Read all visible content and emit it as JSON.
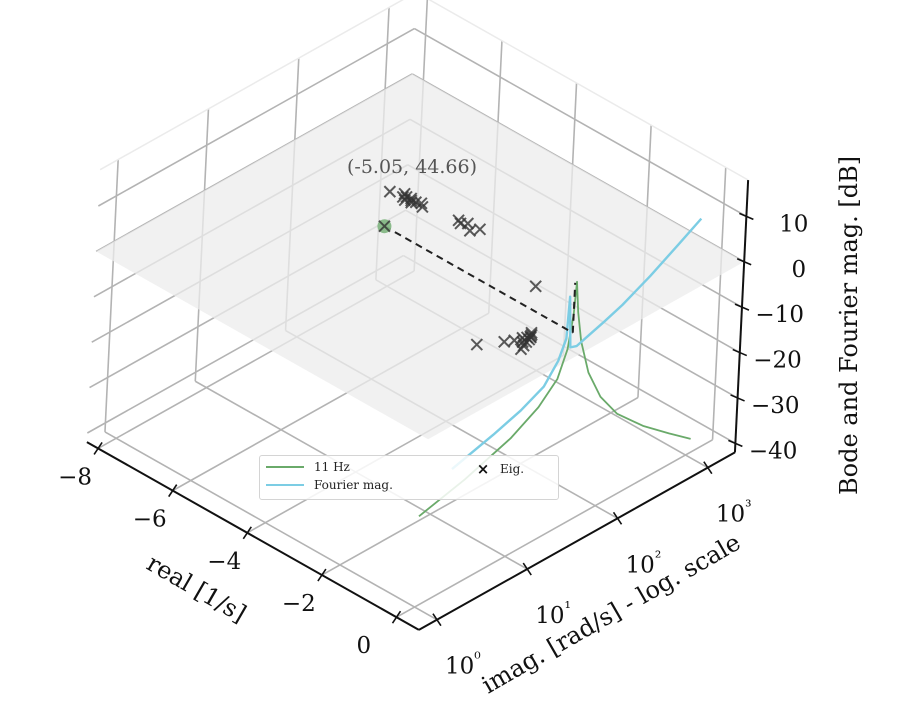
{
  "chart_data": {
    "type": "3d-line-scatter",
    "title": "",
    "xlabel": "real [1/s]",
    "ylabel": "imag. [rad/s] - log. scale",
    "zlabel": "Bode and Fourier mag. [dB]",
    "x_ticks": [
      "−8",
      "−6",
      "−4",
      "−2",
      "0"
    ],
    "x_tick_values": [
      -8,
      -6,
      -4,
      -2,
      0
    ],
    "y_ticks": [
      "10⁰",
      "10¹",
      "10²",
      "10³"
    ],
    "y_tick_values_log10": [
      0,
      1,
      2,
      3
    ],
    "z_ticks": [
      "10",
      "0",
      "−10",
      "−20",
      "−30",
      "−40"
    ],
    "z_tick_values": [
      10,
      0,
      -10,
      -20,
      -30,
      -40
    ],
    "xlim": [
      -8.3,
      0.6
    ],
    "ylim_log10": [
      -0.2,
      3.3
    ],
    "zlim": [
      -42,
      18
    ],
    "grid": true,
    "legend_position": "lower center (inside floor)",
    "annotation": {
      "text": "(-5.05, 44.66)",
      "point": {
        "real": -5.05,
        "imag": 44.66
      }
    },
    "series": [
      {
        "name": "11 Hz",
        "kind": "line",
        "color": "#6aaa6a",
        "description": "Bode magnitude along imaginary axis at real = 0",
        "points_log10imag_db": [
          [
            0.0,
            -22
          ],
          [
            0.5,
            -19.5
          ],
          [
            1.0,
            -16
          ],
          [
            1.3,
            -12.5
          ],
          [
            1.5,
            -8.5
          ],
          [
            1.6,
            -3
          ],
          [
            1.65,
            4
          ],
          [
            1.67,
            11
          ],
          [
            1.7,
            4
          ],
          [
            1.75,
            -3
          ],
          [
            1.85,
            -11
          ],
          [
            2.0,
            -18
          ],
          [
            2.2,
            -24
          ],
          [
            2.5,
            -30
          ],
          [
            2.8,
            -35
          ],
          [
            3.05,
            -39
          ]
        ]
      },
      {
        "name": "Fourier mag.",
        "kind": "line",
        "color": "#7ccde4",
        "description": "Fourier magnitude along imaginary axis at real = 0",
        "points_log10imag_db": [
          [
            0.35,
            -15.5
          ],
          [
            0.8,
            -13
          ],
          [
            1.1,
            -11
          ],
          [
            1.35,
            -8.5
          ],
          [
            1.5,
            -4.5
          ],
          [
            1.58,
            -0.5
          ],
          [
            1.6,
            8.5
          ],
          [
            1.63,
            -3
          ],
          [
            1.7,
            -3.5
          ],
          [
            1.85,
            -2.5
          ],
          [
            2.0,
            -1.5
          ],
          [
            2.2,
            0
          ],
          [
            2.5,
            3
          ],
          [
            2.8,
            6.5
          ],
          [
            3.05,
            9.5
          ]
        ]
      },
      {
        "name": "Eig.",
        "kind": "scatter",
        "marker": "x",
        "color": "#333333",
        "z_plane_db": 0,
        "points_real_log10imag": [
          [
            -5.8,
            2.02
          ],
          [
            -5.55,
            2.08
          ],
          [
            -5.5,
            2.04
          ],
          [
            -5.45,
            2.06
          ],
          [
            -5.4,
            2.02
          ],
          [
            -5.35,
            2.07
          ],
          [
            -5.3,
            2.05
          ],
          [
            -5.25,
            2.03
          ],
          [
            -5.2,
            2.06
          ],
          [
            -5.1,
            2.08
          ],
          [
            -5.0,
            2.05
          ],
          [
            -4.2,
            2.12
          ],
          [
            -4.1,
            2.1
          ],
          [
            -4.0,
            2.14
          ],
          [
            -3.8,
            2.08
          ],
          [
            -3.7,
            2.15
          ],
          [
            -1.6,
            1.9
          ],
          [
            -0.55,
            1.42
          ],
          [
            -0.5,
            1.4
          ],
          [
            -0.48,
            1.38
          ],
          [
            -0.45,
            1.37
          ],
          [
            -0.5,
            1.35
          ],
          [
            -0.42,
            1.34
          ],
          [
            -0.55,
            1.32
          ],
          [
            -0.4,
            1.3
          ],
          [
            -0.45,
            1.28
          ],
          [
            -0.6,
            1.25
          ],
          [
            -0.35,
            1.25
          ],
          [
            -0.7,
            1.18
          ],
          [
            -0.3,
            1.2
          ],
          [
            -1.0,
            1.0
          ],
          [
            -5.05,
            1.65
          ]
        ]
      }
    ]
  },
  "legend": {
    "items": [
      {
        "label": "11 Hz",
        "color": "#6aaa6a",
        "type": "line"
      },
      {
        "label": "Fourier mag.",
        "color": "#7ccde4",
        "type": "line"
      },
      {
        "label": "Eig.",
        "marker": "×",
        "type": "marker"
      }
    ]
  },
  "colors": {
    "grid": "#b3b3b3",
    "axis": "#111111",
    "plane_fill": "#ececec",
    "highlight_point": "#7fb57f",
    "dashed": "#222222"
  }
}
